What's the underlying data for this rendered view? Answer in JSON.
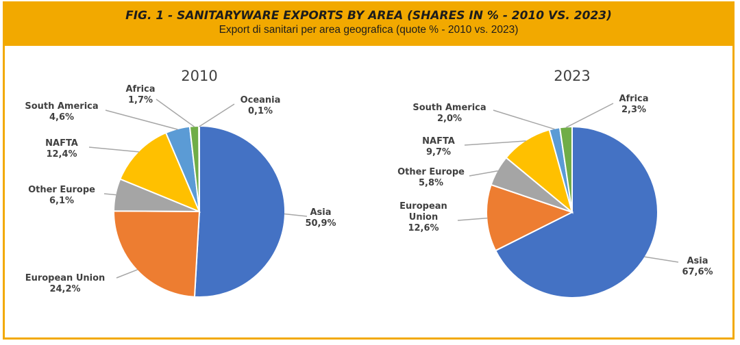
{
  "header": {
    "title": "FIG. 1 - SANITARYWARE EXPORTS BY AREA (SHARES IN % - 2010 VS. 2023)",
    "subtitle": "Export di sanitari per area geografica (quote % - 2010 vs. 2023)"
  },
  "colors": {
    "header_bg": "#f2a900",
    "Asia": "#4472c4",
    "European Union": "#ed7d31",
    "Other Europe": "#a5a5a5",
    "NAFTA": "#ffc000",
    "South America": "#5b9bd5",
    "Africa": "#70ad47",
    "Oceania": "#264478"
  },
  "chart_data": [
    {
      "type": "pie",
      "title": "2010",
      "slices": [
        {
          "name": "Asia",
          "value": 50.9,
          "label": "50,9%"
        },
        {
          "name": "European Union",
          "value": 24.2,
          "label": "24,2%"
        },
        {
          "name": "Other Europe",
          "value": 6.1,
          "label": "6,1%"
        },
        {
          "name": "NAFTA",
          "value": 12.4,
          "label": "12,4%"
        },
        {
          "name": "South America",
          "value": 4.6,
          "label": "4,6%"
        },
        {
          "name": "Africa",
          "value": 1.7,
          "label": "1,7%"
        },
        {
          "name": "Oceania",
          "value": 0.1,
          "label": "0,1%"
        }
      ]
    },
    {
      "type": "pie",
      "title": "2023",
      "slices": [
        {
          "name": "Asia",
          "value": 67.6,
          "label": "67,6%"
        },
        {
          "name": "European Union",
          "value": 12.6,
          "label": "12,6%"
        },
        {
          "name": "Other Europe",
          "value": 5.8,
          "label": "5,8%"
        },
        {
          "name": "NAFTA",
          "value": 9.7,
          "label": "9,7%"
        },
        {
          "name": "South America",
          "value": 2.0,
          "label": "2,0%"
        },
        {
          "name": "Africa",
          "value": 2.3,
          "label": "2,3%"
        }
      ]
    }
  ]
}
